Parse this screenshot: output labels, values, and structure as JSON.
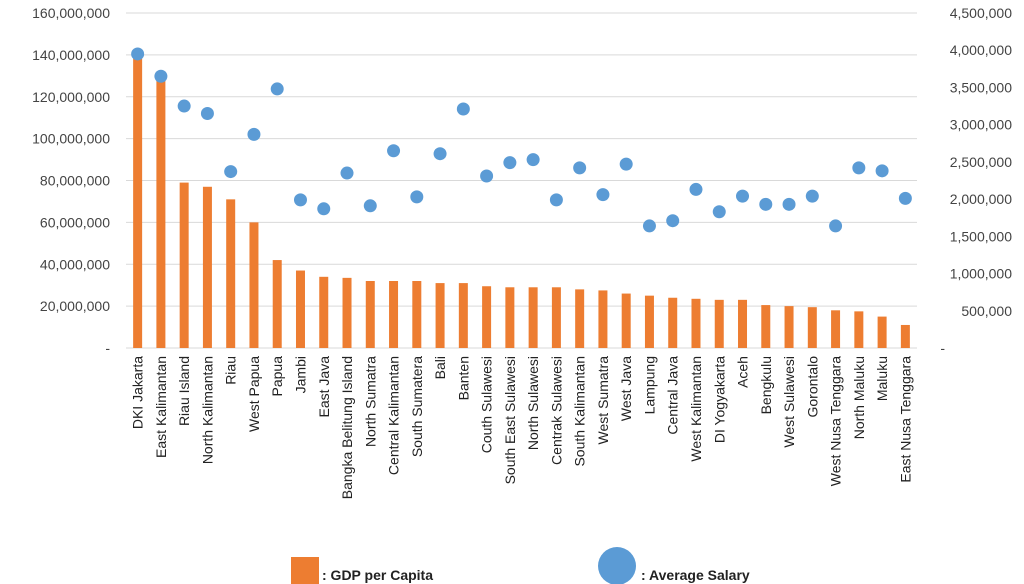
{
  "chart_data": {
    "type": "bar+scatter",
    "categories": [
      "DKI Jakarta",
      "East Kalimantan",
      "Riau Island",
      "North Kalimantan",
      "Riau",
      "West Papua",
      "Papua",
      "Jambi",
      "East Java",
      "Bangka Belitung Island",
      "North Sumatra",
      "Central Kalimantan",
      "South Sumatera",
      "Bali",
      "Banten",
      "Couth Sulawesi",
      "South East Sulawesi",
      "North Sulawesi",
      "Centrak Sulawesi",
      "South Kalimantan",
      "West Sumatra",
      "West Java",
      "Lampung",
      "Central Java",
      "West Kalimantan",
      "DI Yogyakarta",
      "Aceh",
      "Bengkulu",
      "West Sulawesi",
      "Gorontalo",
      "West Nusa Tenggara",
      "North Maluku",
      "Maluku",
      "East Nusa Tenggara"
    ],
    "series": [
      {
        "name": ": GDP per Capita",
        "type": "bar",
        "axis": "left",
        "color": "#ED7D31",
        "values": [
          142000000,
          130000000,
          79000000,
          77000000,
          71000000,
          60000000,
          42000000,
          37000000,
          34000000,
          33500000,
          32000000,
          32000000,
          32000000,
          31000000,
          31000000,
          29500000,
          29000000,
          29000000,
          29000000,
          28000000,
          27500000,
          26000000,
          25000000,
          24000000,
          23500000,
          23000000,
          23000000,
          20500000,
          20000000,
          19500000,
          18000000,
          17500000,
          15000000,
          11000000
        ]
      },
      {
        "name": ": Average Salary",
        "type": "scatter",
        "axis": "right",
        "color": "#5B9BD5",
        "values": [
          3950000,
          3650000,
          3250000,
          3150000,
          2370000,
          2870000,
          3480000,
          1990000,
          1870000,
          2350000,
          1910000,
          2650000,
          2030000,
          2610000,
          3210000,
          2310000,
          2490000,
          2530000,
          1990000,
          2420000,
          2060000,
          2470000,
          1640000,
          1710000,
          2130000,
          1830000,
          2040000,
          1930000,
          1930000,
          2040000,
          1640000,
          2420000,
          2380000,
          2010000
        ]
      }
    ],
    "y_left": {
      "ylim": [
        0,
        160000000
      ],
      "ticks": [
        {
          "v": 0,
          "label": "-"
        },
        {
          "v": 20000000,
          "label": "20,000,000"
        },
        {
          "v": 40000000,
          "label": "40,000,000"
        },
        {
          "v": 60000000,
          "label": "60,000,000"
        },
        {
          "v": 80000000,
          "label": "80,000,000"
        },
        {
          "v": 100000000,
          "label": "100,000,000"
        },
        {
          "v": 120000000,
          "label": "120,000,000"
        },
        {
          "v": 140000000,
          "label": "140,000,000"
        },
        {
          "v": 160000000,
          "label": "160,000,000"
        }
      ]
    },
    "y_right": {
      "ylim": [
        0,
        4500000
      ],
      "ticks": [
        {
          "v": 0,
          "label": "-"
        },
        {
          "v": 500000,
          "label": "500,000"
        },
        {
          "v": 1000000,
          "label": "1,000,000"
        },
        {
          "v": 1500000,
          "label": "1,500,000"
        },
        {
          "v": 2000000,
          "label": "2,000,000"
        },
        {
          "v": 2500000,
          "label": "2,500,000"
        },
        {
          "v": 3000000,
          "label": "3,000,000"
        },
        {
          "v": 3500000,
          "label": "3,500,000"
        },
        {
          "v": 4000000,
          "label": "4,000,000"
        },
        {
          "v": 4500000,
          "label": "4,500,000"
        }
      ]
    },
    "grid": true,
    "legend": "bottom-center",
    "gridline_color": "#D9D9D9"
  }
}
